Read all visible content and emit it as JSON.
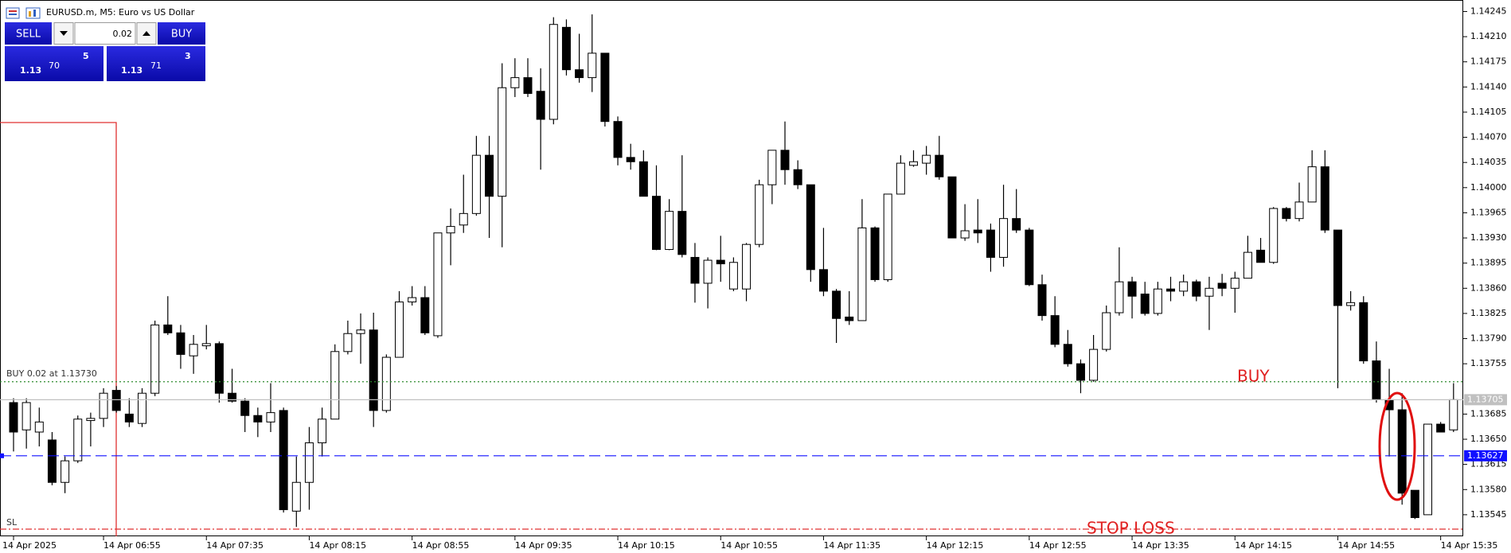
{
  "chart_data": {
    "type": "candlestick",
    "title": "EURUSD.m, M5:  Euro vs US Dollar",
    "categories": [
      "14 Apr 2025",
      null,
      null,
      null,
      null,
      null,
      null,
      "14 Apr 06:55",
      null,
      null,
      null,
      null,
      null,
      null,
      null,
      "14 Apr 07:35",
      null,
      null,
      null,
      null,
      null,
      null,
      null,
      "14 Apr 08:15",
      null,
      null,
      null,
      null,
      null,
      null,
      null,
      "14 Apr 08:55",
      null,
      null,
      null,
      null,
      null,
      null,
      null,
      "14 Apr 09:35",
      null,
      null,
      null,
      null,
      null,
      null,
      null,
      "14 Apr 10:15",
      null,
      null,
      null,
      null,
      null,
      null,
      null,
      "14 Apr 10:55",
      null,
      null,
      null,
      null,
      null,
      null,
      null,
      "14 Apr 11:35",
      null,
      null,
      null,
      null,
      null,
      null,
      null,
      "14 Apr 12:15",
      null,
      null,
      null,
      null,
      null,
      null,
      null,
      "14 Apr 12:55",
      null,
      null,
      null,
      null,
      null,
      null,
      null,
      "14 Apr 13:35",
      null,
      null,
      null,
      null,
      null,
      null,
      null,
      "14 Apr 14:15",
      null,
      null,
      null,
      null,
      null,
      null,
      null,
      "14 Apr 14:55",
      null,
      null,
      null,
      null,
      null,
      null,
      null,
      "14 Apr 15:35",
      null
    ],
    "open": [
      1.13701,
      1.13663,
      1.1366,
      1.13649,
      1.1359,
      1.1362,
      1.13676,
      1.13679,
      1.13718,
      1.13685,
      1.13672,
      1.13714,
      1.13809,
      1.13798,
      1.13766,
      1.1378,
      1.13783,
      1.13714,
      1.13703,
      1.13683,
      1.13674,
      1.1369,
      1.1355,
      1.1359,
      1.13645,
      1.13678,
      1.13772,
      1.13797,
      1.13802,
      1.1369,
      1.13764,
      1.13841,
      1.13847,
      1.13794,
      1.13937,
      1.13948,
      1.13964,
      1.14045,
      1.13988,
      1.14139,
      1.14153,
      1.14134,
      1.14095,
      1.14223,
      1.14164,
      1.14153,
      1.14187,
      1.14092,
      1.14042,
      1.14036,
      1.13988,
      1.13914,
      1.13967,
      1.13903,
      1.13867,
      1.13899,
      1.13859,
      1.13859,
      1.13921,
      1.14004,
      1.14052,
      1.14025,
      1.14004,
      1.13886,
      1.13856,
      1.1382,
      1.13815,
      1.13944,
      1.13872,
      1.13991,
      1.14031,
      1.14034,
      1.14045,
      1.14015,
      1.1393,
      1.13941,
      1.13941,
      1.13903,
      1.13957,
      1.13941,
      1.13865,
      1.13822,
      1.13782,
      1.13755,
      1.13732,
      1.13775,
      1.13826,
      1.13869,
      1.13852,
      1.13825,
      1.13859,
      1.13856,
      1.13869,
      1.13849,
      1.13867,
      1.1386,
      1.13874,
      1.13913,
      1.13896,
      1.13971,
      1.13957,
      1.1398,
      1.14029,
      1.13941,
      1.13836,
      1.1384,
      1.13759,
      1.13705,
      1.13691,
      1.13579,
      1.13545,
      1.13671,
      1.13663
    ],
    "high": [
      1.13707,
      1.13707,
      1.13694,
      1.1366,
      1.13626,
      1.13683,
      1.13687,
      1.13721,
      1.13724,
      1.13707,
      1.13721,
      1.13815,
      1.13849,
      1.13809,
      1.13795,
      1.13809,
      1.13786,
      1.13748,
      1.13707,
      1.13694,
      1.13728,
      1.13694,
      1.13626,
      1.13667,
      1.13694,
      1.13782,
      1.13815,
      1.13825,
      1.13826,
      1.13768,
      1.13856,
      1.13863,
      1.13863,
      1.13937,
      1.13971,
      1.14018,
      1.14072,
      1.14072,
      1.14173,
      1.1418,
      1.1418,
      1.14166,
      1.14237,
      1.14234,
      1.14214,
      1.14241,
      1.14187,
      1.14099,
      1.14061,
      1.14052,
      1.14031,
      1.13984,
      1.14045,
      1.13923,
      1.13903,
      1.13933,
      1.13903,
      1.13923,
      1.14011,
      1.14052,
      1.14092,
      1.14038,
      1.14004,
      1.13944,
      1.13859,
      1.13856,
      1.13984,
      1.13946,
      1.13991,
      1.14045,
      1.14052,
      1.14058,
      1.14072,
      1.14015,
      1.13977,
      1.13984,
      1.1395,
      1.14004,
      1.13998,
      1.13944,
      1.13879,
      1.13849,
      1.13802,
      1.13761,
      1.13795,
      1.13836,
      1.13917,
      1.13876,
      1.13869,
      1.13869,
      1.13876,
      1.13879,
      1.13872,
      1.13876,
      1.1388,
      1.13883,
      1.13933,
      1.1393,
      1.13973,
      1.13973,
      1.14007,
      1.14052,
      1.14052,
      1.13941,
      1.13856,
      1.13849,
      1.13786,
      1.13748,
      1.13714,
      1.13579,
      1.13671,
      1.13674,
      1.13728
    ],
    "low": [
      1.13633,
      1.13637,
      1.1364,
      1.13586,
      1.13575,
      1.13617,
      1.1364,
      1.13667,
      1.13687,
      1.13667,
      1.13667,
      1.1371,
      1.13795,
      1.13748,
      1.13741,
      1.13775,
      1.13701,
      1.13701,
      1.1366,
      1.13653,
      1.1366,
      1.13548,
      1.13528,
      1.13552,
      1.13626,
      1.13678,
      1.13768,
      1.13755,
      1.13667,
      1.13687,
      1.13764,
      1.13836,
      1.13795,
      1.13791,
      1.13892,
      1.13937,
      1.13961,
      1.1393,
      1.13917,
      1.14126,
      1.14126,
      1.14025,
      1.14088,
      1.14156,
      1.14146,
      1.14133,
      1.14085,
      1.14031,
      1.14025,
      1.13988,
      1.13913,
      1.13913,
      1.13903,
      1.1384,
      1.13832,
      1.13869,
      1.13856,
      1.13842,
      1.13917,
      1.13977,
      1.14004,
      1.13998,
      1.13869,
      1.13849,
      1.13784,
      1.13809,
      1.13815,
      1.13869,
      1.13869,
      1.13991,
      1.14029,
      1.14018,
      1.14011,
      1.1393,
      1.13926,
      1.13923,
      1.13883,
      1.1389,
      1.13937,
      1.13863,
      1.13815,
      1.13778,
      1.13751,
      1.13714,
      1.1373,
      1.13772,
      1.13822,
      1.13818,
      1.13822,
      1.13822,
      1.13842,
      1.13849,
      1.13842,
      1.13802,
      1.13849,
      1.13826,
      1.13874,
      1.13896,
      1.13894,
      1.13953,
      1.13953,
      1.1398,
      1.13937,
      1.13721,
      1.13829,
      1.13755,
      1.13701,
      1.13626,
      1.13559,
      1.13539,
      1.13545,
      1.1366,
      1.1366
    ],
    "close": [
      1.1366,
      1.13701,
      1.13674,
      1.1359,
      1.1362,
      1.13678,
      1.13679,
      1.13714,
      1.1369,
      1.13674,
      1.13714,
      1.13809,
      1.13798,
      1.13768,
      1.13782,
      1.13783,
      1.13714,
      1.13703,
      1.13683,
      1.13674,
      1.13687,
      1.13552,
      1.1359,
      1.13645,
      1.13678,
      1.13772,
      1.13797,
      1.13802,
      1.1369,
      1.13764,
      1.13841,
      1.13847,
      1.13798,
      1.13937,
      1.13946,
      1.13964,
      1.14045,
      1.13988,
      1.14139,
      1.14153,
      1.14131,
      1.14095,
      1.14227,
      1.14164,
      1.14153,
      1.14187,
      1.14092,
      1.14042,
      1.14036,
      1.13988,
      1.13914,
      1.13967,
      1.13907,
      1.13867,
      1.13899,
      1.13894,
      1.13896,
      1.13921,
      1.14004,
      1.14052,
      1.14025,
      1.14004,
      1.13886,
      1.13856,
      1.13818,
      1.13815,
      1.13944,
      1.13872,
      1.13991,
      1.14034,
      1.14036,
      1.14045,
      1.14015,
      1.1393,
      1.1394,
      1.13937,
      1.13903,
      1.13957,
      1.13941,
      1.13865,
      1.13822,
      1.13782,
      1.13755,
      1.13732,
      1.13775,
      1.13826,
      1.13869,
      1.13849,
      1.13825,
      1.13859,
      1.13856,
      1.13869,
      1.13849,
      1.1386,
      1.1386,
      1.13874,
      1.1391,
      1.13896,
      1.13971,
      1.13957,
      1.1398,
      1.14029,
      1.13941,
      1.13836,
      1.1384,
      1.13759,
      1.13705,
      1.13691,
      1.13575,
      1.13541,
      1.13671,
      1.1366,
      1.13705
    ],
    "colors": {
      "bull": "#ffffff",
      "bear": "#000000",
      "wick": "#000000"
    },
    "ylim": [
      1.13515,
      1.14261
    ],
    "yticks": [
      1.14245,
      {
        "value": 1.1421,
        "label": "1.14210"
      },
      1.14175,
      {
        "value": 1.1414,
        "label": "1.14140"
      },
      1.14105,
      {
        "value": 1.1407,
        "label": "1.14070"
      },
      1.14035,
      {
        "value": 1.14,
        "label": "1.14000"
      },
      1.13965,
      {
        "value": 1.1393,
        "label": "1.13930"
      },
      1.13895,
      {
        "value": 1.1386,
        "label": "1.13860"
      },
      1.13825,
      {
        "value": 1.1379,
        "label": "1.13790"
      },
      1.13755,
      1.13685,
      {
        "value": 1.1365,
        "label": "1.13650"
      },
      1.13615,
      {
        "value": 1.1358,
        "label": "1.13580"
      },
      1.13545
    ],
    "grid": false,
    "order": {
      "label": "BUY 0.02 at 1.13730",
      "value": 1.1373,
      "color": "#2e8b2e"
    },
    "stop_loss": {
      "label": "SL",
      "value": 1.13525,
      "color": "#e03030"
    },
    "bid": {
      "value": 1.13705,
      "color": "#c0c0c0"
    },
    "level": {
      "value": 1.13627,
      "color": "#1010ff"
    },
    "annotations": [
      "BUY",
      "STOP LOSS"
    ]
  },
  "trade_panel": {
    "sell": "SELL",
    "buy": "BUY",
    "volume": "0.02",
    "bid": {
      "handle": "1.13",
      "pips": "70",
      "point": "5"
    },
    "ask": {
      "handle": "1.13",
      "pips": "71",
      "point": "3"
    }
  }
}
